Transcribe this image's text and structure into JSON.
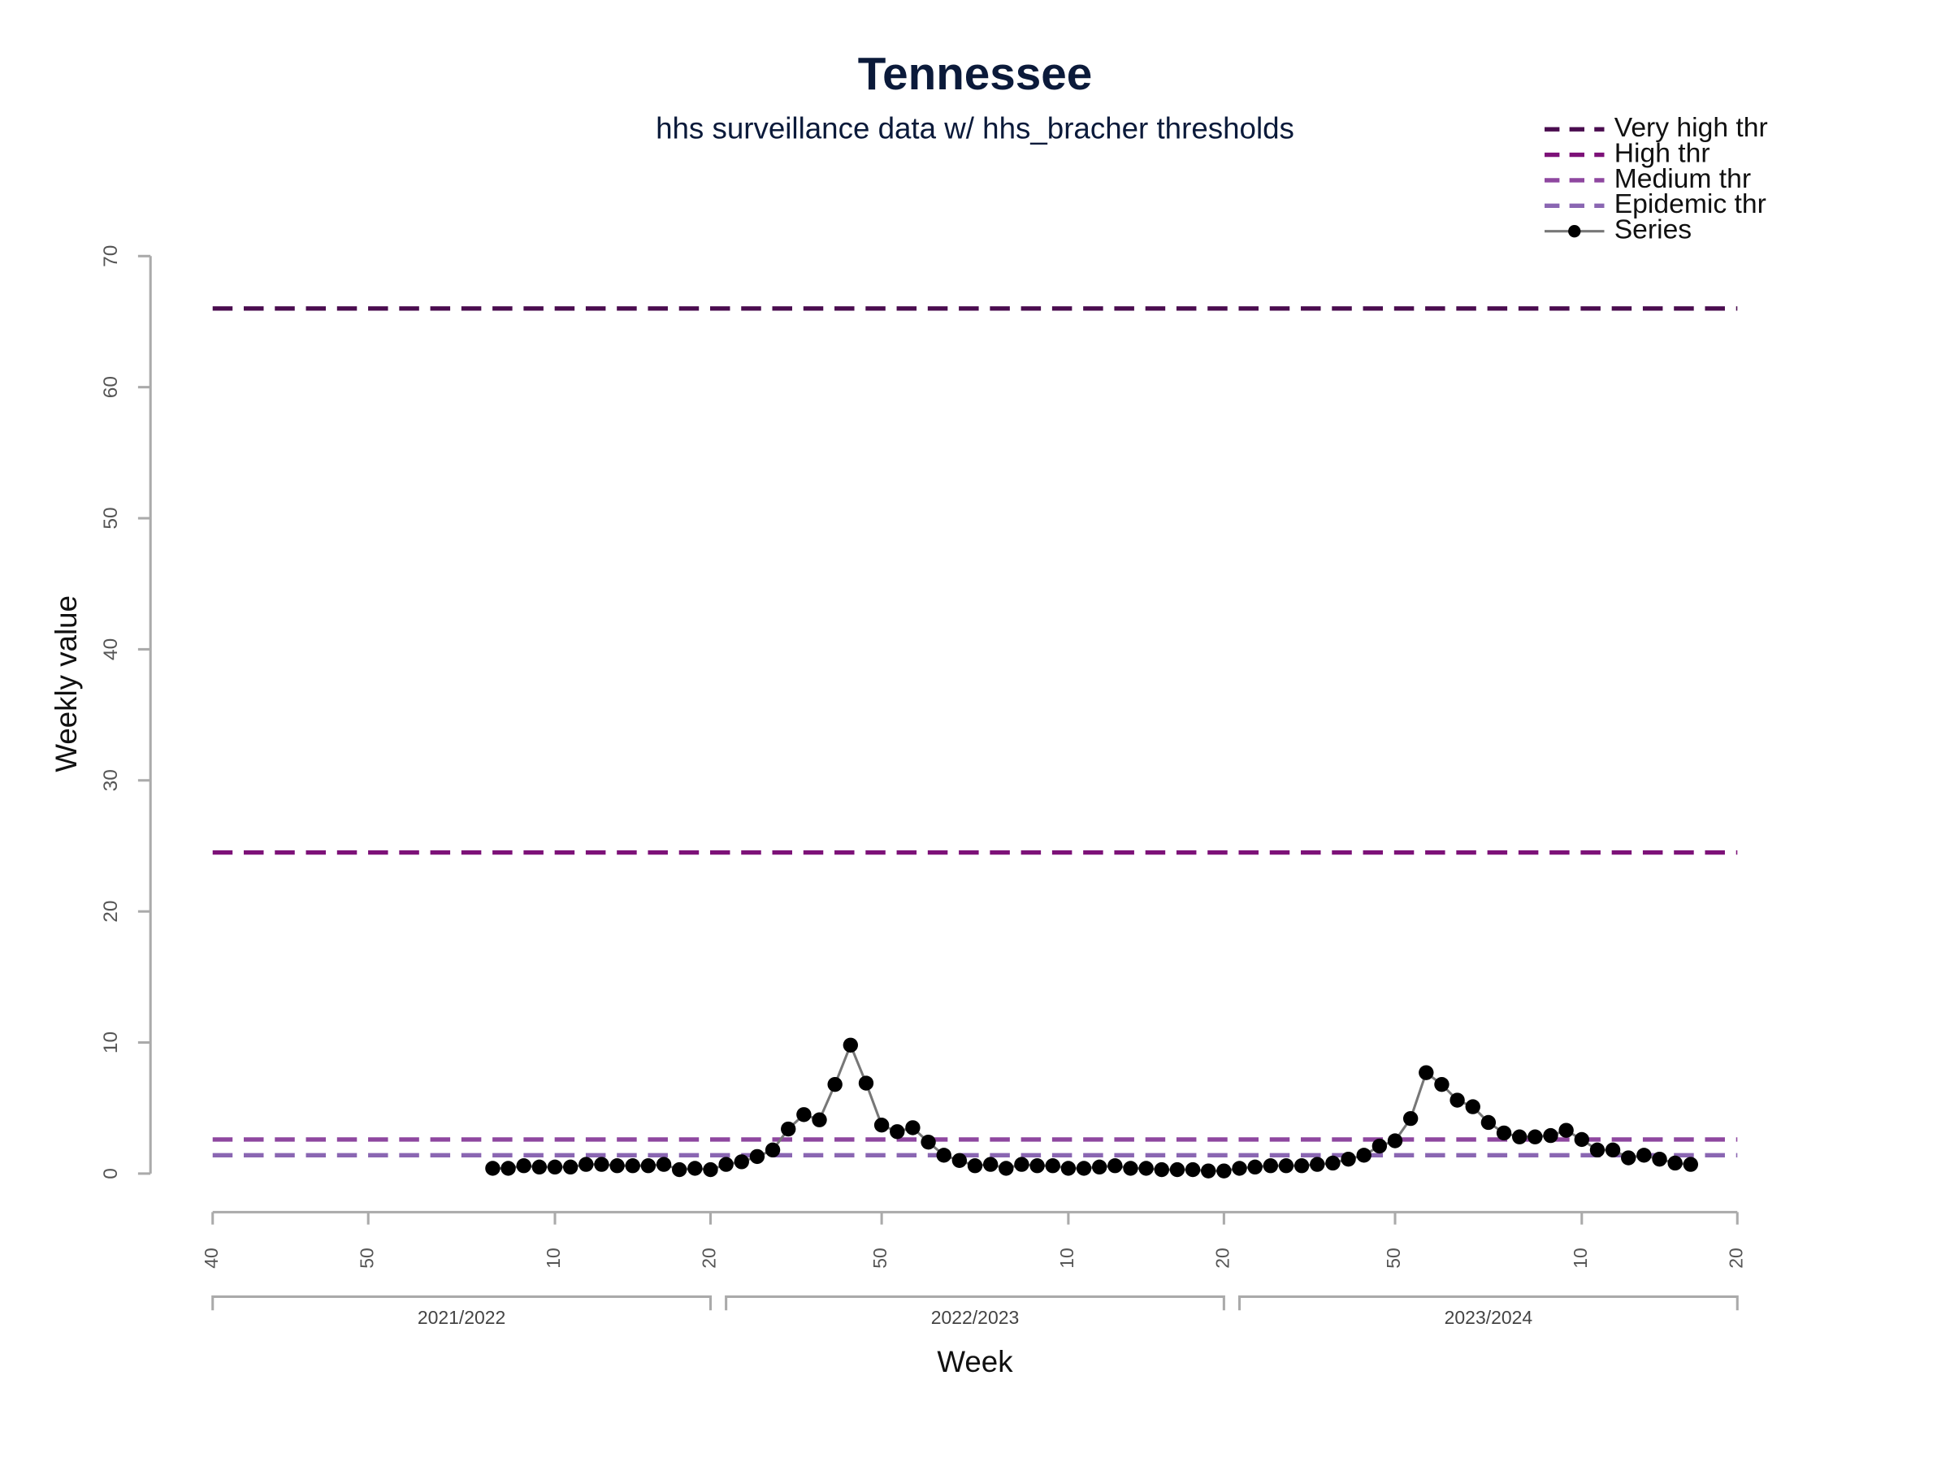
{
  "chart_data": {
    "type": "line",
    "title": "Tennessee",
    "subtitle": "hhs surveillance data w/ hhs_bracher thresholds",
    "x_label": "Week",
    "y_label": "Weekly value",
    "xlim": [
      0,
      98
    ],
    "ylim": [
      0,
      70
    ],
    "yticks": [
      0,
      10,
      20,
      30,
      40,
      50,
      60,
      70
    ],
    "xticks": [
      {
        "value": 0,
        "label": "40"
      },
      {
        "value": 10,
        "label": "50"
      },
      {
        "value": 22,
        "label": "10"
      },
      {
        "value": 32,
        "label": "20"
      },
      {
        "value": 43,
        "label": "50"
      },
      {
        "value": 55,
        "label": "10"
      },
      {
        "value": 65,
        "label": "20"
      },
      {
        "value": 76,
        "label": "50"
      },
      {
        "value": 88,
        "label": "10"
      },
      {
        "value": 98,
        "label": "20"
      }
    ],
    "seasons": [
      {
        "label": "2021/2022",
        "range": [
          0,
          32
        ]
      },
      {
        "label": "2022/2023",
        "range": [
          33,
          65
        ]
      },
      {
        "label": "2023/2024",
        "range": [
          66,
          98
        ]
      }
    ],
    "thresholds": [
      {
        "name": "Very high thr",
        "color": "#4a0c4f",
        "value": 66
      },
      {
        "name": "High thr",
        "color": "#7d1178",
        "value": 24.5
      },
      {
        "name": "Medium thr",
        "color": "#8e479f",
        "value": 2.6
      },
      {
        "name": "Epidemic thr",
        "color": "#8a66b2",
        "value": 1.4
      }
    ],
    "series": [
      {
        "name": "Series",
        "color": "#000000",
        "x": [
          18,
          19,
          20,
          21,
          22,
          23,
          24,
          25,
          26,
          27,
          28,
          29,
          30,
          31,
          32,
          33,
          34,
          35,
          36,
          37,
          38,
          39,
          40,
          41,
          42,
          43,
          44,
          45,
          46,
          47,
          48,
          49,
          50,
          51,
          52,
          53,
          54,
          55,
          56,
          57,
          58,
          59,
          60,
          61,
          62,
          63,
          64,
          65,
          66,
          67,
          68,
          69,
          70,
          71,
          72,
          73,
          74,
          75,
          76,
          77,
          78,
          79,
          80,
          81,
          82,
          83,
          84,
          85,
          86,
          87,
          88,
          89,
          90,
          91,
          92,
          93,
          94,
          95
        ],
        "values": [
          0.4,
          0.4,
          0.6,
          0.5,
          0.5,
          0.5,
          0.7,
          0.7,
          0.6,
          0.6,
          0.6,
          0.7,
          0.3,
          0.4,
          0.3,
          0.7,
          0.9,
          1.3,
          1.8,
          3.4,
          4.5,
          4.1,
          6.8,
          9.8,
          6.9,
          3.7,
          3.2,
          3.5,
          2.4,
          1.4,
          1.0,
          0.6,
          0.7,
          0.4,
          0.7,
          0.6,
          0.6,
          0.4,
          0.4,
          0.5,
          0.6,
          0.4,
          0.4,
          0.3,
          0.3,
          0.3,
          0.2,
          0.2,
          0.4,
          0.5,
          0.6,
          0.6,
          0.6,
          0.7,
          0.8,
          1.1,
          1.4,
          2.1,
          2.5,
          4.2,
          7.7,
          6.8,
          5.6,
          5.1,
          3.9,
          3.1,
          2.8,
          2.8,
          2.9,
          3.3,
          2.6,
          1.8,
          1.8,
          1.2,
          1.4,
          1.1,
          0.8,
          0.7
        ]
      }
    ]
  }
}
